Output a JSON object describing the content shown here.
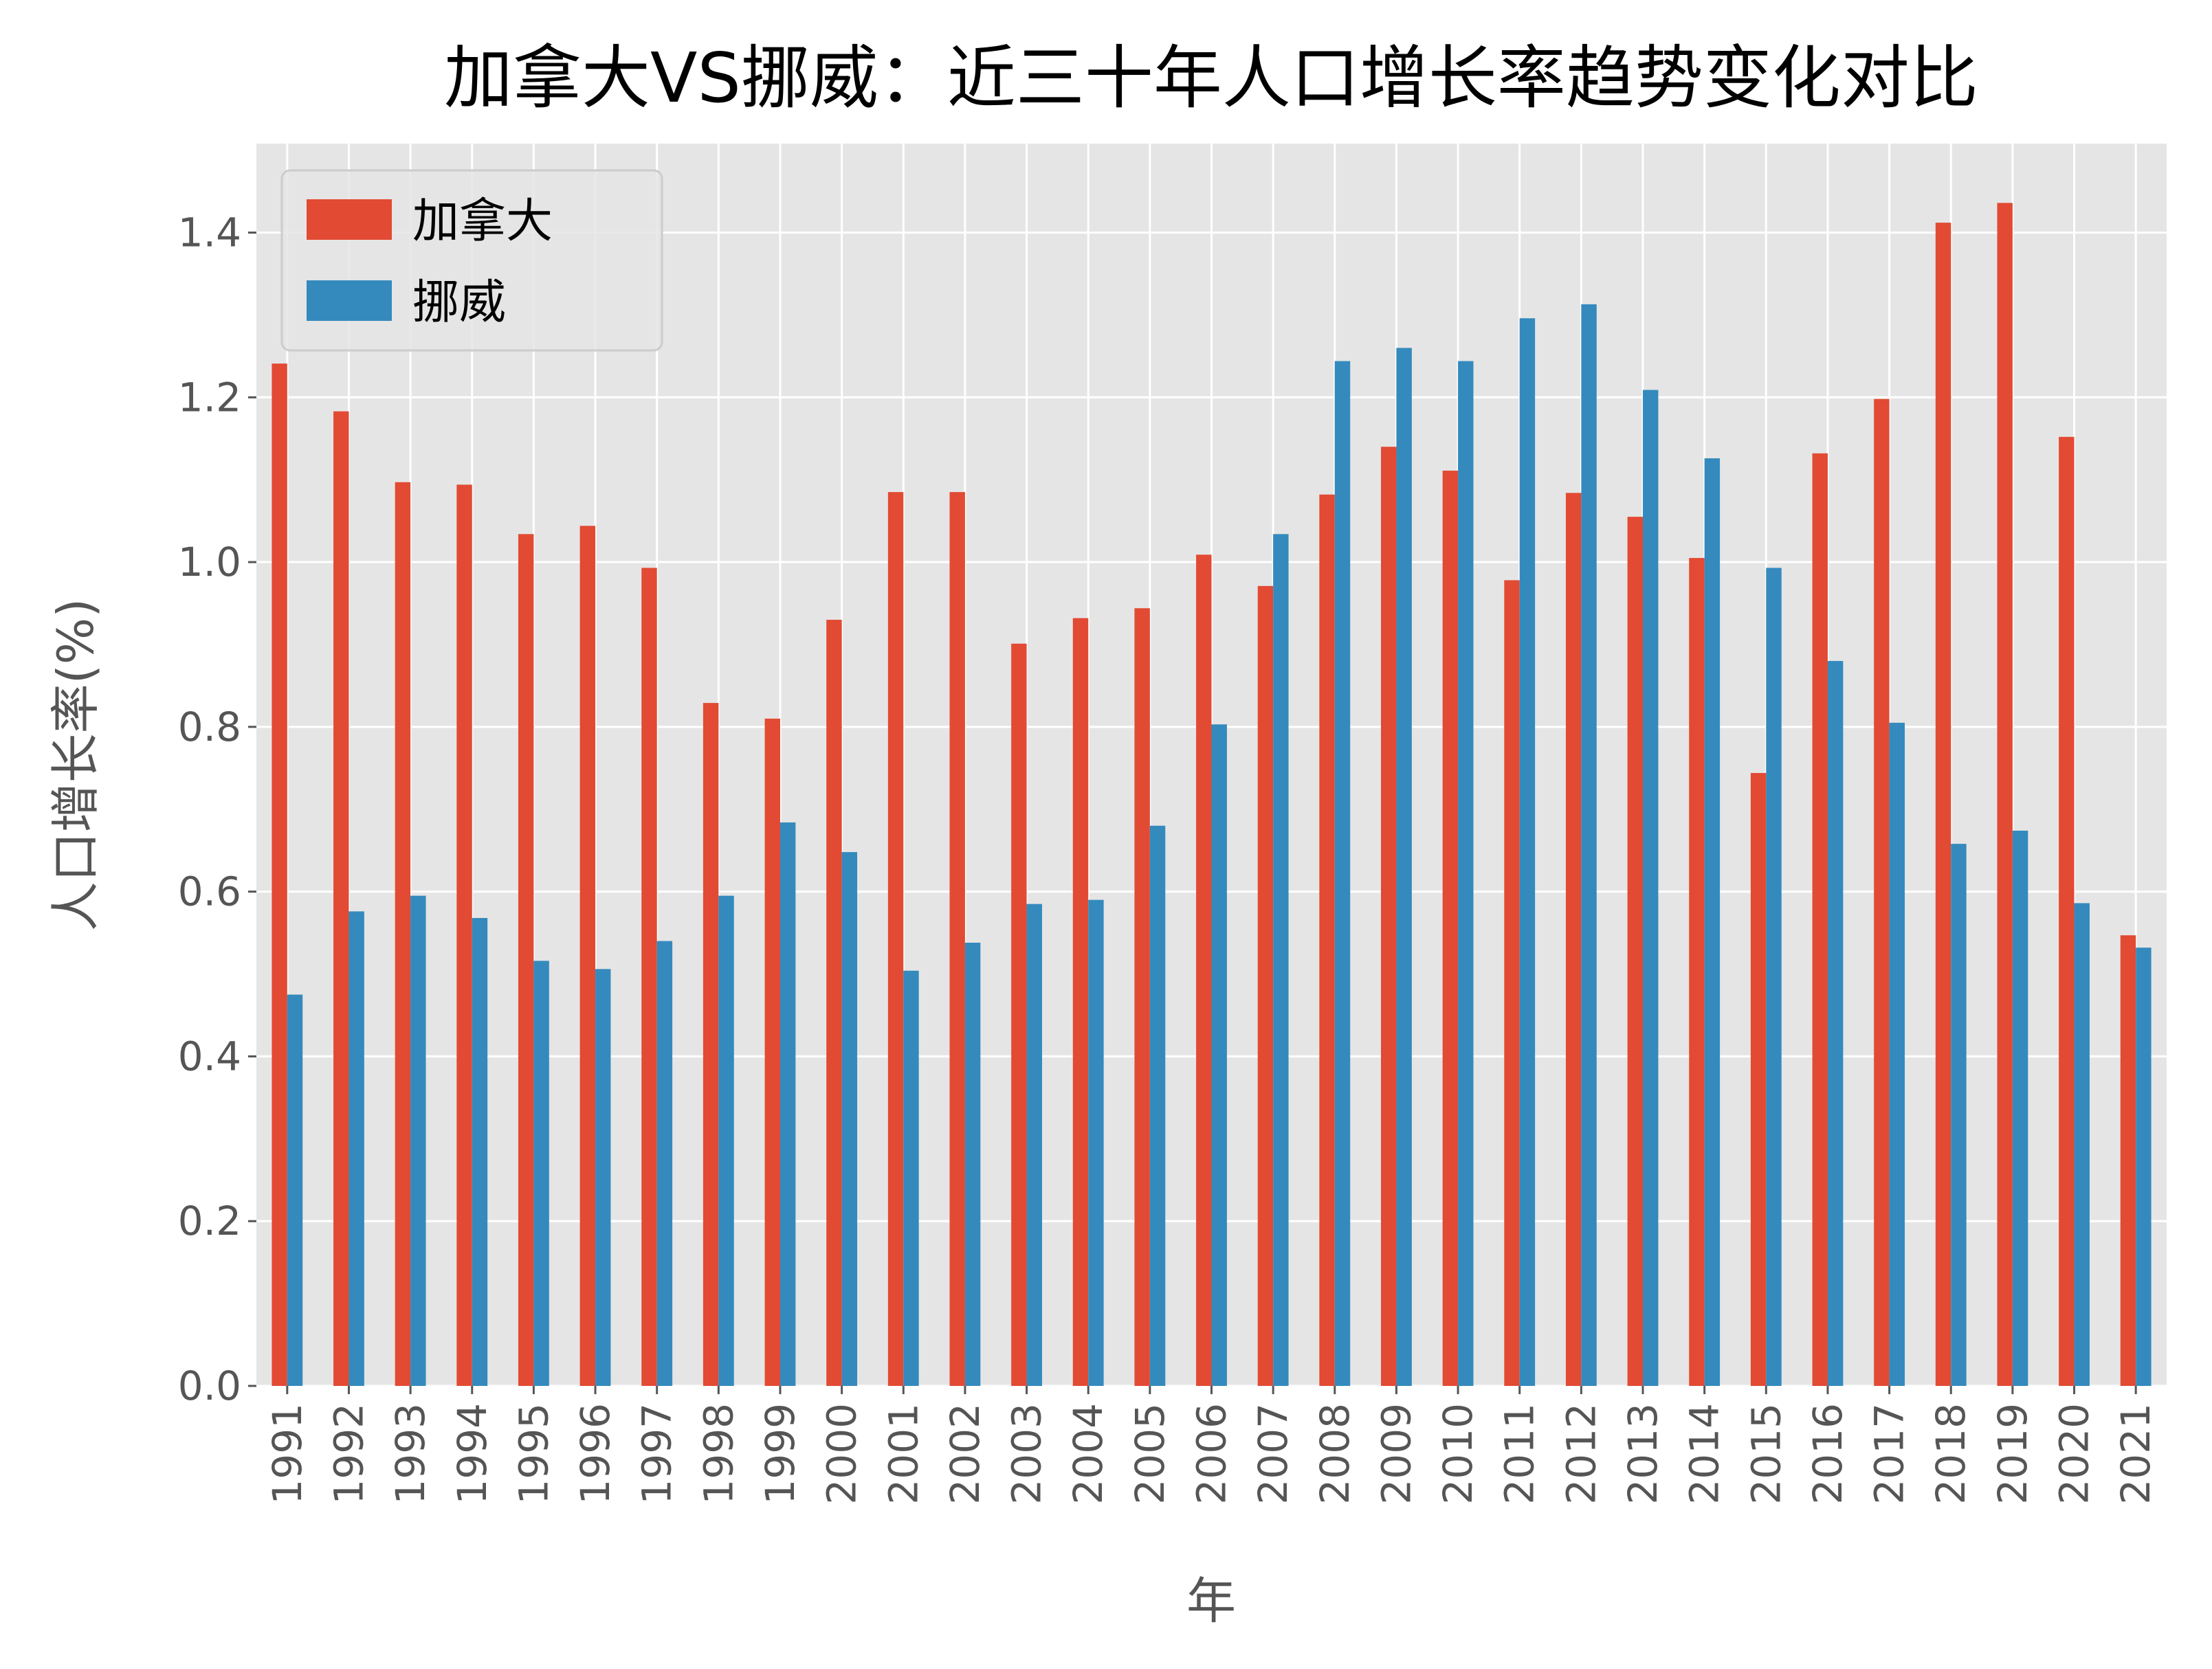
{
  "chart_data": {
    "type": "bar",
    "title": "加拿大VS挪威：近三十年人口增长率趋势变化对比",
    "xlabel": "年",
    "ylabel": "人口增长率(%)",
    "ylim": [
      0,
      1.508
    ],
    "yticks": [
      "0.0",
      "0.2",
      "0.4",
      "0.6",
      "0.8",
      "1.0",
      "1.2",
      "1.4"
    ],
    "grid": true,
    "legend_position": "top-left",
    "categories": [
      "1991",
      "1992",
      "1993",
      "1994",
      "1995",
      "1996",
      "1997",
      "1998",
      "1999",
      "2000",
      "2001",
      "2002",
      "2003",
      "2004",
      "2005",
      "2006",
      "2007",
      "2008",
      "2009",
      "2010",
      "2011",
      "2012",
      "2013",
      "2014",
      "2015",
      "2016",
      "2017",
      "2018",
      "2019",
      "2020",
      "2021"
    ],
    "series": [
      {
        "name": "加拿大",
        "color": "#E24A33",
        "values": [
          1.241,
          1.183,
          1.097,
          1.094,
          1.034,
          1.044,
          0.993,
          0.829,
          0.81,
          0.93,
          1.085,
          1.085,
          0.901,
          0.932,
          0.944,
          1.009,
          0.971,
          1.082,
          1.14,
          1.111,
          0.978,
          1.084,
          1.055,
          1.005,
          0.744,
          1.132,
          1.198,
          1.412,
          1.436,
          1.152,
          0.547
        ]
      },
      {
        "name": "挪威",
        "color": "#348ABD",
        "values": [
          0.475,
          0.576,
          0.595,
          0.568,
          0.516,
          0.506,
          0.54,
          0.595,
          0.684,
          0.648,
          0.504,
          0.538,
          0.585,
          0.59,
          0.68,
          0.803,
          1.034,
          1.244,
          1.26,
          1.244,
          1.296,
          1.313,
          1.209,
          1.126,
          0.993,
          0.88,
          0.805,
          0.658,
          0.674,
          0.586,
          0.532
        ]
      }
    ]
  }
}
